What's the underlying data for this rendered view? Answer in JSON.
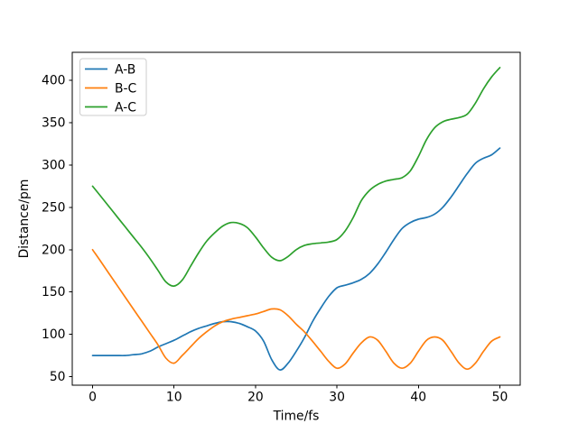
{
  "chart_data": {
    "type": "line",
    "title": "",
    "xlabel": "Time/fs",
    "ylabel": "Distance/pm",
    "xlim": [
      -2.5,
      52.5
    ],
    "ylim": [
      40,
      433
    ],
    "xticks": [
      0,
      10,
      20,
      30,
      40,
      50
    ],
    "yticks": [
      50,
      100,
      150,
      200,
      250,
      300,
      350,
      400
    ],
    "grid": false,
    "legend_position": "upper left",
    "x": [
      0,
      1,
      2,
      3,
      4,
      5,
      6,
      7,
      8,
      9,
      10,
      11,
      12,
      13,
      14,
      15,
      16,
      17,
      18,
      19,
      20,
      21,
      22,
      23,
      24,
      25,
      26,
      27,
      28,
      29,
      30,
      31,
      32,
      33,
      34,
      35,
      36,
      37,
      38,
      39,
      40,
      41,
      42,
      43,
      44,
      45,
      46,
      47,
      48,
      49,
      50
    ],
    "series": [
      {
        "name": "A-B",
        "color": "#1f77b4",
        "values": [
          75,
          75,
          75,
          75,
          75,
          76,
          77,
          80,
          85,
          89,
          93,
          98,
          103,
          107,
          110,
          113,
          115,
          115,
          113,
          109,
          104,
          92,
          70,
          58,
          66,
          80,
          96,
          115,
          131,
          145,
          155,
          158,
          161,
          165,
          172,
          183,
          197,
          212,
          225,
          232,
          236,
          238,
          242,
          250,
          262,
          276,
          290,
          302,
          308,
          312,
          320
        ]
      },
      {
        "name": "B-C",
        "color": "#ff7f0e",
        "values": [
          200,
          186,
          172,
          158,
          144,
          130,
          116,
          102,
          88,
          72,
          66,
          75,
          85,
          95,
          103,
          110,
          115,
          118,
          120,
          122,
          124,
          127,
          130,
          129,
          122,
          112,
          103,
          92,
          80,
          68,
          60,
          65,
          78,
          90,
          97,
          93,
          80,
          66,
          60,
          66,
          80,
          93,
          97,
          93,
          80,
          66,
          59,
          66,
          80,
          92,
          97
        ]
      },
      {
        "name": "A-C",
        "color": "#2ca02c",
        "values": [
          275,
          263,
          251,
          239,
          227,
          215,
          203,
          190,
          176,
          162,
          157,
          164,
          180,
          196,
          210,
          220,
          228,
          232,
          231,
          226,
          215,
          202,
          191,
          187,
          192,
          200,
          205,
          207,
          208,
          209,
          212,
          222,
          238,
          258,
          270,
          277,
          281,
          283,
          285,
          293,
          310,
          330,
          344,
          351,
          354,
          356,
          360,
          373,
          390,
          404,
          415
        ]
      }
    ]
  },
  "colors": {
    "background": "#ffffff",
    "axis": "#000000",
    "legend_border": "#cccccc",
    "legend_background": "#ffffff"
  }
}
